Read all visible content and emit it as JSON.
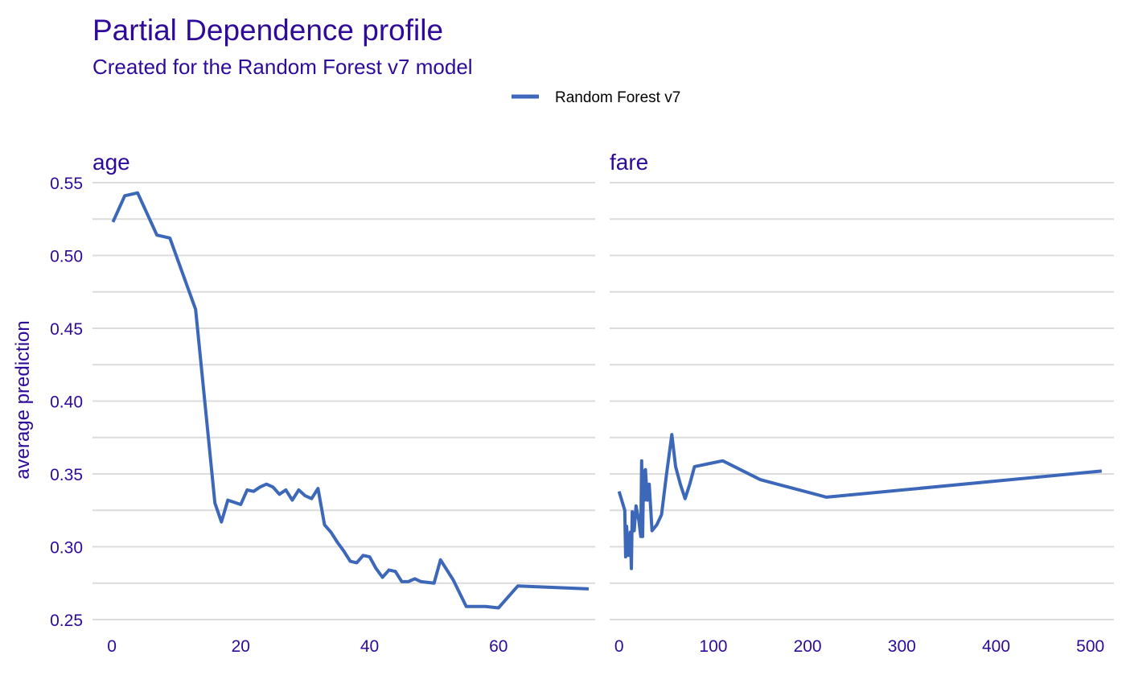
{
  "chart_data": {
    "type": "line",
    "title": "Partial Dependence profile",
    "subtitle": "Created for the Random Forest v7 model",
    "ylabel": "average prediction",
    "ylim": [
      0.245,
      0.555
    ],
    "y_ticks": [
      0.25,
      0.3,
      0.35,
      0.4,
      0.45,
      0.5,
      0.55
    ],
    "y_tick_labels": [
      "0.25",
      "0.30",
      "0.35",
      "0.40",
      "0.45",
      "0.50",
      "0.55"
    ],
    "grid": true,
    "legend": {
      "position": "top",
      "entries": [
        {
          "name": "Random Forest v7",
          "color": "#3D67B8"
        }
      ]
    },
    "text_color": "#2E0A9A",
    "line_color": "#3D67B8",
    "series_name": "Random Forest v7",
    "panels": [
      {
        "label": "age",
        "xlim": [
          -3,
          75
        ],
        "x_ticks": [
          0,
          20,
          40,
          60
        ],
        "x_tick_labels": [
          "0",
          "20",
          "40",
          "60"
        ],
        "x": [
          0.17,
          2,
          4,
          7,
          9,
          13,
          16,
          17,
          18,
          20,
          21,
          22,
          23,
          24,
          25,
          26,
          27,
          28,
          29,
          30,
          31,
          32,
          33,
          34,
          35,
          36,
          37,
          38,
          39,
          40,
          41,
          42,
          43,
          44,
          45,
          46,
          47,
          48,
          50,
          51,
          53,
          55,
          58,
          60,
          63,
          74
        ],
        "y": [
          0.523,
          0.541,
          0.543,
          0.514,
          0.512,
          0.463,
          0.33,
          0.317,
          0.332,
          0.329,
          0.339,
          0.338,
          0.341,
          0.343,
          0.341,
          0.336,
          0.339,
          0.332,
          0.339,
          0.335,
          0.333,
          0.34,
          0.315,
          0.31,
          0.303,
          0.297,
          0.29,
          0.289,
          0.294,
          0.293,
          0.285,
          0.279,
          0.284,
          0.283,
          0.276,
          0.276,
          0.278,
          0.276,
          0.275,
          0.291,
          0.277,
          0.259,
          0.259,
          0.258,
          0.273,
          0.271
        ]
      },
      {
        "label": "fare",
        "xlim": [
          -10,
          525
        ],
        "x_ticks": [
          0,
          100,
          200,
          300,
          400,
          500
        ],
        "x_tick_labels": [
          "0",
          "100",
          "200",
          "300",
          "400",
          "500"
        ],
        "x": [
          0,
          6,
          7,
          8,
          10,
          12,
          13,
          14,
          16,
          18,
          21,
          23,
          24,
          25,
          26,
          27,
          28,
          30,
          32,
          35,
          40,
          45,
          50,
          56,
          60,
          65,
          70,
          75,
          80,
          110,
          150,
          220,
          512
        ],
        "y": [
          0.338,
          0.325,
          0.293,
          0.314,
          0.294,
          0.31,
          0.285,
          0.324,
          0.311,
          0.328,
          0.318,
          0.307,
          0.359,
          0.307,
          0.352,
          0.332,
          0.353,
          0.332,
          0.343,
          0.311,
          0.315,
          0.322,
          0.348,
          0.377,
          0.355,
          0.343,
          0.333,
          0.343,
          0.355,
          0.359,
          0.346,
          0.334,
          0.352
        ]
      }
    ]
  }
}
